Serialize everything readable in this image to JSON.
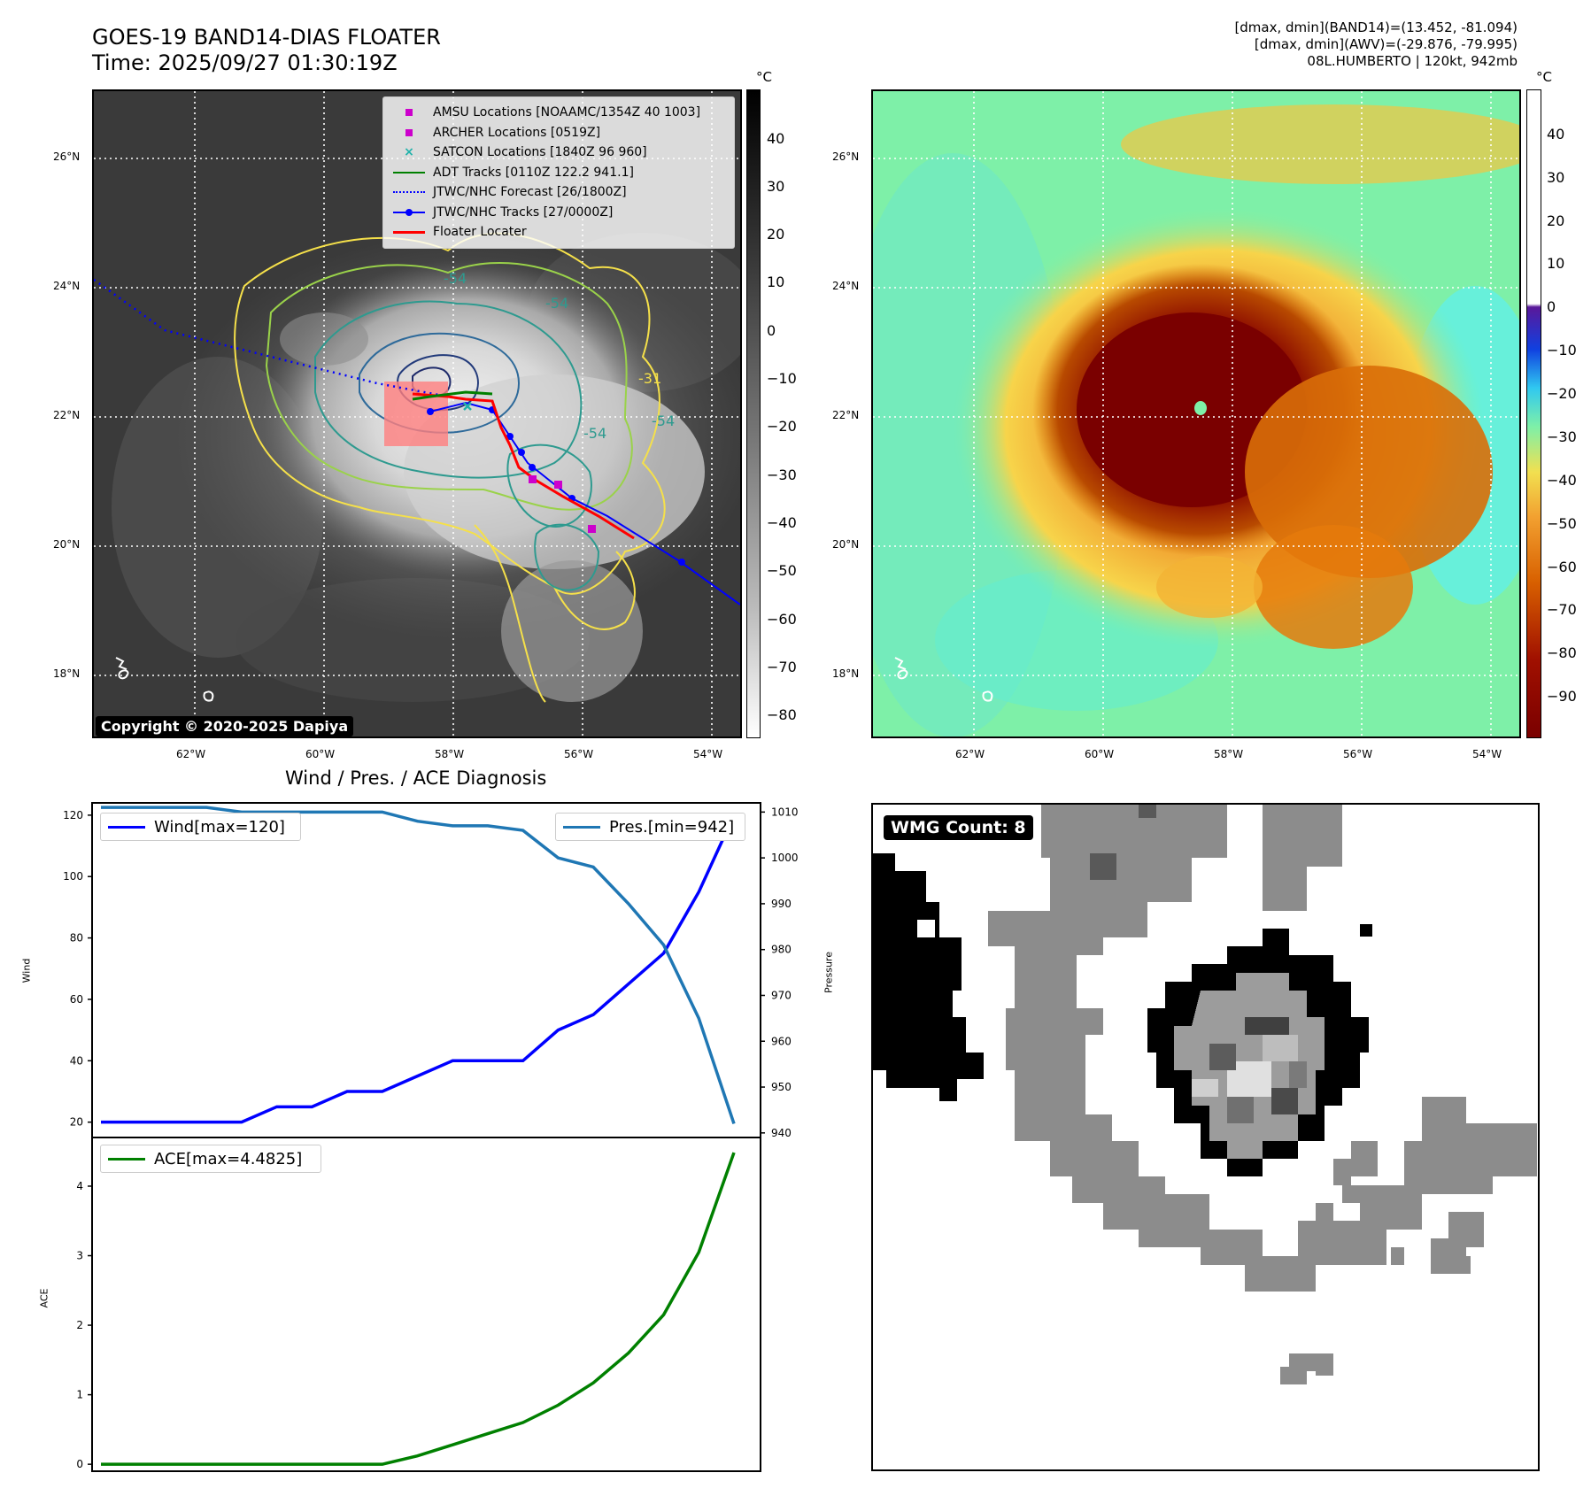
{
  "header": {
    "title_line1": "GOES-19 BAND14-DIAS FLOATER",
    "title_line2": "Time: 2025/09/27 01:30:19Z",
    "info_line1": "[dmax, dmin](BAND14)=(13.452, -81.094)",
    "info_line2": "[dmax, dmin](AWV)=(-29.876, -79.995)",
    "info_line3": "08L.HUMBERTO | 120kt, 942mb"
  },
  "map_axes": {
    "lat_ticks": [
      "26°N",
      "24°N",
      "22°N",
      "20°N",
      "18°N"
    ],
    "lon_ticks": [
      "62°W",
      "60°W",
      "58°W",
      "56°W",
      "54°W"
    ]
  },
  "ir_panel": {
    "colorbar_unit": "°C",
    "colorbar_ticks": [
      "40",
      "30",
      "20",
      "10",
      "0",
      "−10",
      "−20",
      "−30",
      "−40",
      "−50",
      "−60",
      "−70",
      "−80"
    ],
    "contour_labels": [
      "-54",
      "-54",
      "-54",
      "-31",
      "-54"
    ],
    "copyright": "Copyright © 2020-2025 Dapiya",
    "legend": [
      {
        "label": "AMSU Locations [NOAAMC/1354Z 40 1003]",
        "color": "#cc00cc",
        "icon": "square-marker"
      },
      {
        "label": "ARCHER Locations [0519Z]",
        "color": "#cc00cc",
        "icon": "square-marker"
      },
      {
        "label": "SATCON Locations [1840Z 96 960]",
        "color": "#20b2aa",
        "icon": "x-marker"
      },
      {
        "label": "ADT Tracks [0110Z 122.2 941.1]",
        "color": "#008000",
        "icon": "solid-line"
      },
      {
        "label": "JTWC/NHC Forecast [26/1800Z]",
        "color": "#0000ff",
        "icon": "dotted-line"
      },
      {
        "label": "JTWC/NHC Tracks [27/0000Z]",
        "color": "#0000ff",
        "icon": "line-with-dot"
      },
      {
        "label": "Floater Locater",
        "color": "#ff0000",
        "icon": "solid-line"
      }
    ]
  },
  "awv_panel": {
    "colorbar_unit": "°C",
    "colorbar_ticks": [
      "40",
      "30",
      "20",
      "10",
      "0",
      "−10",
      "−20",
      "−30",
      "−40",
      "−50",
      "−60",
      "−70",
      "−80",
      "−90"
    ]
  },
  "wmg_panel": {
    "label": "WMG Count: 8"
  },
  "chart_data": [
    {
      "type": "line",
      "title": "Wind / Pres. / ACE Diagnosis",
      "ylabel": "Wind",
      "y2label": "Pressure",
      "ylim": [
        15,
        124
      ],
      "y2lim": [
        939,
        1012
      ],
      "yticks": [
        20,
        40,
        60,
        80,
        100,
        120
      ],
      "y2ticks": [
        940,
        950,
        960,
        970,
        980,
        990,
        1000,
        1010
      ],
      "series": [
        {
          "name": "Wind[max=120]",
          "color": "#0000ff",
          "axis": "left",
          "values": [
            20,
            20,
            20,
            20,
            20,
            25,
            25,
            30,
            30,
            35,
            40,
            40,
            40,
            50,
            55,
            65,
            75,
            95,
            120
          ]
        },
        {
          "name": "Pres.[min=942]",
          "color": "#1f77b4",
          "axis": "right",
          "values": [
            1011,
            1011,
            1011,
            1011,
            1010,
            1010,
            1010,
            1010,
            1010,
            1008,
            1007,
            1007,
            1006,
            1000,
            998,
            990,
            981,
            965,
            942
          ]
        }
      ]
    },
    {
      "type": "line",
      "ylabel": "ACE",
      "ylim": [
        -0.1,
        4.7
      ],
      "yticks": [
        0,
        1,
        2,
        3,
        4
      ],
      "series": [
        {
          "name": "ACE[max=4.4825]",
          "color": "#008000",
          "axis": "left",
          "values": [
            0,
            0,
            0,
            0,
            0,
            0,
            0,
            0,
            0,
            0.12,
            0.28,
            0.44,
            0.6,
            0.85,
            1.17,
            1.6,
            2.15,
            3.05,
            4.4825
          ]
        }
      ]
    }
  ]
}
